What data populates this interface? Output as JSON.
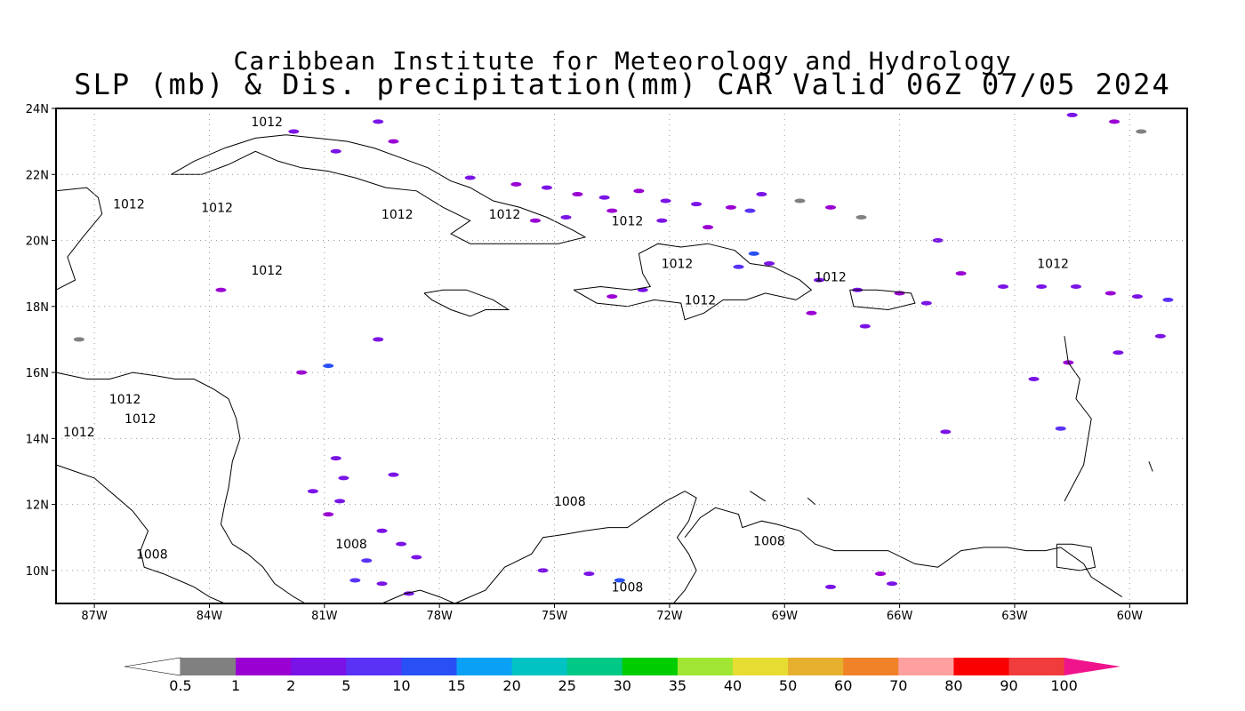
{
  "title": {
    "line1": "Caribbean Institute for Meteorology and Hydrology",
    "line2": "SLP (mb) & Dis. precipitation(mm) CAR Valid 06Z 07/05 2024"
  },
  "map": {
    "lon_range": [
      -88.0,
      -58.5
    ],
    "lat_range": [
      9.0,
      24.0
    ],
    "lon_ticks": [
      "87W",
      "84W",
      "81W",
      "78W",
      "75W",
      "72W",
      "69W",
      "66W",
      "63W",
      "60W"
    ],
    "lon_tick_values": [
      -87,
      -84,
      -81,
      -78,
      -75,
      -72,
      -69,
      -66,
      -63,
      -60
    ],
    "lat_ticks": [
      "10N",
      "12N",
      "14N",
      "16N",
      "18N",
      "20N",
      "22N",
      "24N"
    ],
    "lat_tick_values": [
      10,
      12,
      14,
      16,
      18,
      20,
      22,
      24
    ],
    "gridlines": true,
    "contour_labels": [
      {
        "text": "1012",
        "lon": -82.5,
        "lat": 23.6
      },
      {
        "text": "1012",
        "lon": -82.5,
        "lat": 19.1
      },
      {
        "text": "1012",
        "lon": -86.1,
        "lat": 21.1
      },
      {
        "text": "1012",
        "lon": -83.8,
        "lat": 21.0
      },
      {
        "text": "1012",
        "lon": -79.1,
        "lat": 20.8
      },
      {
        "text": "1012",
        "lon": -76.3,
        "lat": 20.8
      },
      {
        "text": "1012",
        "lon": -73.1,
        "lat": 20.6
      },
      {
        "text": "1012",
        "lon": -71.8,
        "lat": 19.3
      },
      {
        "text": "1012",
        "lon": -71.2,
        "lat": 18.2
      },
      {
        "text": "1012",
        "lon": -67.8,
        "lat": 18.9
      },
      {
        "text": "1012",
        "lon": -62.0,
        "lat": 19.3
      },
      {
        "text": "1012",
        "lon": -86.2,
        "lat": 15.2
      },
      {
        "text": "1012",
        "lon": -85.8,
        "lat": 14.6
      },
      {
        "text": "1012",
        "lon": -87.4,
        "lat": 14.2
      },
      {
        "text": "1008",
        "lon": -74.6,
        "lat": 12.1
      },
      {
        "text": "1008",
        "lon": -85.5,
        "lat": 10.5
      },
      {
        "text": "1008",
        "lon": -80.3,
        "lat": 10.8
      },
      {
        "text": "1008",
        "lon": -73.1,
        "lat": 9.5
      },
      {
        "text": "1008",
        "lon": -69.4,
        "lat": 10.9
      }
    ],
    "precip_patches": [
      {
        "lon": -77.2,
        "lat": 21.9,
        "v": 2
      },
      {
        "lon": -76.0,
        "lat": 21.7,
        "v": 1
      },
      {
        "lon": -75.2,
        "lat": 21.6,
        "v": 2
      },
      {
        "lon": -74.4,
        "lat": 21.4,
        "v": 1
      },
      {
        "lon": -73.7,
        "lat": 21.3,
        "v": 2
      },
      {
        "lon": -72.8,
        "lat": 21.5,
        "v": 1
      },
      {
        "lon": -72.1,
        "lat": 21.2,
        "v": 2
      },
      {
        "lon": -71.3,
        "lat": 21.1,
        "v": 2
      },
      {
        "lon": -70.4,
        "lat": 21.0,
        "v": 1
      },
      {
        "lon": -69.6,
        "lat": 21.4,
        "v": 2
      },
      {
        "lon": -68.6,
        "lat": 21.2,
        "v": 0.5
      },
      {
        "lon": -67.8,
        "lat": 21.0,
        "v": 1
      },
      {
        "lon": -67.0,
        "lat": 20.7,
        "v": 0.5
      },
      {
        "lon": -69.9,
        "lat": 20.9,
        "v": 5
      },
      {
        "lon": -71.0,
        "lat": 20.4,
        "v": 1
      },
      {
        "lon": -72.2,
        "lat": 20.6,
        "v": 2
      },
      {
        "lon": -73.5,
        "lat": 20.9,
        "v": 1
      },
      {
        "lon": -74.7,
        "lat": 20.7,
        "v": 2
      },
      {
        "lon": -75.5,
        "lat": 20.6,
        "v": 1
      },
      {
        "lon": -69.8,
        "lat": 19.6,
        "v": 10
      },
      {
        "lon": -70.2,
        "lat": 19.2,
        "v": 5
      },
      {
        "lon": -69.4,
        "lat": 19.3,
        "v": 2
      },
      {
        "lon": -68.1,
        "lat": 18.8,
        "v": 2
      },
      {
        "lon": -67.1,
        "lat": 18.5,
        "v": 2
      },
      {
        "lon": -66.0,
        "lat": 18.4,
        "v": 1
      },
      {
        "lon": -65.3,
        "lat": 18.1,
        "v": 2
      },
      {
        "lon": -64.4,
        "lat": 19.0,
        "v": 1
      },
      {
        "lon": -63.3,
        "lat": 18.6,
        "v": 2
      },
      {
        "lon": -62.3,
        "lat": 18.6,
        "v": 2
      },
      {
        "lon": -61.4,
        "lat": 18.6,
        "v": 2
      },
      {
        "lon": -60.5,
        "lat": 18.4,
        "v": 1
      },
      {
        "lon": -59.8,
        "lat": 18.3,
        "v": 2
      },
      {
        "lon": -59.0,
        "lat": 18.2,
        "v": 5
      },
      {
        "lon": -59.2,
        "lat": 17.1,
        "v": 2
      },
      {
        "lon": -60.3,
        "lat": 16.6,
        "v": 2
      },
      {
        "lon": -61.6,
        "lat": 16.3,
        "v": 1
      },
      {
        "lon": -62.5,
        "lat": 15.8,
        "v": 2
      },
      {
        "lon": -61.8,
        "lat": 14.3,
        "v": 5
      },
      {
        "lon": -64.8,
        "lat": 14.2,
        "v": 2
      },
      {
        "lon": -66.9,
        "lat": 17.4,
        "v": 2
      },
      {
        "lon": -68.3,
        "lat": 17.8,
        "v": 1
      },
      {
        "lon": -72.7,
        "lat": 18.5,
        "v": 2
      },
      {
        "lon": -73.5,
        "lat": 18.3,
        "v": 1
      },
      {
        "lon": -80.9,
        "lat": 16.2,
        "v": 10
      },
      {
        "lon": -79.6,
        "lat": 17.0,
        "v": 2
      },
      {
        "lon": -81.6,
        "lat": 16.0,
        "v": 1
      },
      {
        "lon": -80.7,
        "lat": 13.4,
        "v": 2
      },
      {
        "lon": -80.5,
        "lat": 12.8,
        "v": 2
      },
      {
        "lon": -81.3,
        "lat": 12.4,
        "v": 2
      },
      {
        "lon": -80.6,
        "lat": 12.1,
        "v": 2
      },
      {
        "lon": -80.9,
        "lat": 11.7,
        "v": 1
      },
      {
        "lon": -79.5,
        "lat": 11.2,
        "v": 2
      },
      {
        "lon": -79.0,
        "lat": 10.8,
        "v": 2
      },
      {
        "lon": -78.6,
        "lat": 10.4,
        "v": 2
      },
      {
        "lon": -79.9,
        "lat": 10.3,
        "v": 5
      },
      {
        "lon": -80.2,
        "lat": 9.7,
        "v": 5
      },
      {
        "lon": -79.5,
        "lat": 9.6,
        "v": 2
      },
      {
        "lon": -78.8,
        "lat": 9.3,
        "v": 2
      },
      {
        "lon": -79.2,
        "lat": 12.9,
        "v": 2
      },
      {
        "lon": -73.3,
        "lat": 9.7,
        "v": 10
      },
      {
        "lon": -74.1,
        "lat": 9.9,
        "v": 2
      },
      {
        "lon": -75.3,
        "lat": 10.0,
        "v": 2
      },
      {
        "lon": -67.8,
        "lat": 9.5,
        "v": 2
      },
      {
        "lon": -66.2,
        "lat": 9.6,
        "v": 2
      },
      {
        "lon": -66.5,
        "lat": 9.9,
        "v": 1
      },
      {
        "lon": -61.5,
        "lat": 23.8,
        "v": 2
      },
      {
        "lon": -60.4,
        "lat": 23.6,
        "v": 1
      },
      {
        "lon": -59.7,
        "lat": 23.3,
        "v": 0.5
      },
      {
        "lon": -81.8,
        "lat": 23.3,
        "v": 2
      },
      {
        "lon": -80.7,
        "lat": 22.7,
        "v": 2
      },
      {
        "lon": -79.6,
        "lat": 23.6,
        "v": 2
      },
      {
        "lon": -79.2,
        "lat": 23.0,
        "v": 1
      },
      {
        "lon": -65.0,
        "lat": 20.0,
        "v": 2
      },
      {
        "lon": -87.4,
        "lat": 17.0,
        "v": 0.5
      },
      {
        "lon": -83.7,
        "lat": 18.5,
        "v": 1
      }
    ],
    "coastlines": [
      [
        [
          -88.0,
          21.5
        ],
        [
          -87.2,
          21.6
        ],
        [
          -86.9,
          21.3
        ],
        [
          -86.8,
          20.8
        ],
        [
          -87.3,
          20.1
        ],
        [
          -87.7,
          19.5
        ],
        [
          -87.5,
          18.8
        ],
        [
          -88.0,
          18.5
        ]
      ],
      [
        [
          -88.0,
          16.0
        ],
        [
          -87.6,
          15.9
        ],
        [
          -87.2,
          15.8
        ],
        [
          -86.6,
          15.8
        ],
        [
          -86.0,
          16.0
        ],
        [
          -85.4,
          15.9
        ],
        [
          -84.9,
          15.8
        ],
        [
          -84.4,
          15.8
        ],
        [
          -83.9,
          15.5
        ],
        [
          -83.5,
          15.2
        ],
        [
          -83.3,
          14.6
        ],
        [
          -83.2,
          14.0
        ],
        [
          -83.4,
          13.3
        ],
        [
          -83.5,
          12.5
        ],
        [
          -83.6,
          12.0
        ],
        [
          -83.7,
          11.4
        ],
        [
          -83.4,
          10.8
        ],
        [
          -83.0,
          10.5
        ],
        [
          -82.6,
          10.1
        ],
        [
          -82.3,
          9.6
        ],
        [
          -81.8,
          9.2
        ],
        [
          -81.5,
          9.0
        ]
      ],
      [
        [
          -88.0,
          13.2
        ],
        [
          -87.5,
          13.0
        ],
        [
          -87.0,
          12.8
        ],
        [
          -86.6,
          12.4
        ],
        [
          -86.0,
          11.8
        ],
        [
          -85.6,
          11.2
        ],
        [
          -85.8,
          10.6
        ],
        [
          -85.7,
          10.1
        ],
        [
          -85.2,
          9.9
        ],
        [
          -84.8,
          9.7
        ],
        [
          -84.4,
          9.5
        ],
        [
          -84.0,
          9.2
        ],
        [
          -83.6,
          9.0
        ]
      ],
      [
        [
          -79.5,
          9.0
        ],
        [
          -78.9,
          9.3
        ],
        [
          -78.5,
          9.4
        ],
        [
          -78.0,
          9.2
        ],
        [
          -77.6,
          9.0
        ]
      ],
      [
        [
          -77.6,
          9.0
        ],
        [
          -76.8,
          9.4
        ],
        [
          -76.3,
          10.1
        ],
        [
          -75.6,
          10.5
        ],
        [
          -75.3,
          11.0
        ],
        [
          -74.7,
          11.1
        ],
        [
          -74.2,
          11.2
        ],
        [
          -73.6,
          11.3
        ],
        [
          -73.1,
          11.3
        ],
        [
          -72.6,
          11.7
        ],
        [
          -72.1,
          12.1
        ],
        [
          -71.6,
          12.4
        ],
        [
          -71.3,
          12.2
        ],
        [
          -71.5,
          11.5
        ],
        [
          -71.8,
          11.0
        ],
        [
          -71.5,
          10.5
        ],
        [
          -71.3,
          10.0
        ],
        [
          -71.6,
          9.4
        ],
        [
          -71.9,
          9.0
        ]
      ],
      [
        [
          -71.6,
          11.0
        ],
        [
          -71.2,
          11.6
        ],
        [
          -70.8,
          11.9
        ],
        [
          -70.2,
          11.7
        ],
        [
          -70.1,
          11.3
        ],
        [
          -69.6,
          11.5
        ],
        [
          -69.2,
          11.4
        ],
        [
          -68.6,
          11.2
        ],
        [
          -68.2,
          10.8
        ],
        [
          -67.7,
          10.6
        ],
        [
          -67.0,
          10.6
        ],
        [
          -66.3,
          10.6
        ],
        [
          -65.6,
          10.2
        ],
        [
          -65.0,
          10.1
        ],
        [
          -64.4,
          10.6
        ],
        [
          -63.8,
          10.7
        ],
        [
          -63.2,
          10.7
        ],
        [
          -62.7,
          10.6
        ],
        [
          -62.2,
          10.6
        ],
        [
          -61.8,
          10.7
        ],
        [
          -61.2,
          10.2
        ],
        [
          -61.0,
          9.8
        ],
        [
          -60.6,
          9.5
        ],
        [
          -60.2,
          9.2
        ]
      ],
      [
        [
          -85.0,
          22.0
        ],
        [
          -84.4,
          22.4
        ],
        [
          -83.6,
          22.8
        ],
        [
          -82.8,
          23.1
        ],
        [
          -82.0,
          23.2
        ],
        [
          -81.2,
          23.1
        ],
        [
          -80.4,
          23.0
        ],
        [
          -79.7,
          22.8
        ],
        [
          -79.0,
          22.5
        ],
        [
          -78.3,
          22.2
        ],
        [
          -77.7,
          21.8
        ],
        [
          -77.2,
          21.6
        ],
        [
          -76.6,
          21.2
        ],
        [
          -75.9,
          21.0
        ],
        [
          -75.2,
          20.7
        ],
        [
          -74.5,
          20.3
        ],
        [
          -74.2,
          20.1
        ],
        [
          -74.9,
          19.9
        ],
        [
          -75.7,
          19.9
        ],
        [
          -76.5,
          19.9
        ],
        [
          -77.2,
          19.9
        ],
        [
          -77.7,
          20.2
        ],
        [
          -77.2,
          20.6
        ],
        [
          -77.9,
          21.0
        ],
        [
          -78.6,
          21.5
        ],
        [
          -79.4,
          21.6
        ],
        [
          -80.2,
          21.9
        ],
        [
          -80.9,
          22.1
        ],
        [
          -81.6,
          22.2
        ],
        [
          -82.2,
          22.4
        ],
        [
          -82.8,
          22.7
        ],
        [
          -83.5,
          22.3
        ],
        [
          -84.2,
          22.0
        ],
        [
          -85.0,
          22.0
        ]
      ],
      [
        [
          -78.4,
          18.4
        ],
        [
          -77.9,
          18.5
        ],
        [
          -77.3,
          18.5
        ],
        [
          -76.6,
          18.2
        ],
        [
          -76.2,
          17.9
        ],
        [
          -76.8,
          17.9
        ],
        [
          -77.2,
          17.7
        ],
        [
          -77.7,
          17.9
        ],
        [
          -78.2,
          18.2
        ],
        [
          -78.4,
          18.4
        ]
      ],
      [
        [
          -74.5,
          18.5
        ],
        [
          -73.8,
          18.6
        ],
        [
          -73.0,
          18.5
        ],
        [
          -72.5,
          18.6
        ],
        [
          -72.7,
          19.0
        ],
        [
          -72.8,
          19.6
        ],
        [
          -72.3,
          19.9
        ],
        [
          -71.7,
          19.8
        ],
        [
          -71.0,
          19.9
        ],
        [
          -70.3,
          19.7
        ],
        [
          -69.9,
          19.3
        ],
        [
          -69.3,
          19.2
        ],
        [
          -68.6,
          18.8
        ],
        [
          -68.3,
          18.5
        ],
        [
          -68.7,
          18.2
        ],
        [
          -69.5,
          18.4
        ],
        [
          -70.0,
          18.2
        ],
        [
          -70.6,
          18.2
        ],
        [
          -71.1,
          17.8
        ],
        [
          -71.6,
          17.6
        ],
        [
          -71.7,
          18.1
        ],
        [
          -72.4,
          18.2
        ],
        [
          -73.1,
          18.0
        ],
        [
          -73.9,
          18.1
        ],
        [
          -74.5,
          18.5
        ]
      ],
      [
        [
          -67.3,
          18.5
        ],
        [
          -66.6,
          18.5
        ],
        [
          -65.7,
          18.4
        ],
        [
          -65.6,
          18.1
        ],
        [
          -66.3,
          17.9
        ],
        [
          -67.2,
          18.0
        ],
        [
          -67.3,
          18.5
        ]
      ],
      [
        [
          -61.7,
          17.1
        ],
        [
          -61.6,
          16.3
        ],
        [
          -61.3,
          15.8
        ],
        [
          -61.4,
          15.2
        ],
        [
          -61.0,
          14.6
        ],
        [
          -61.1,
          13.9
        ],
        [
          -61.2,
          13.2
        ],
        [
          -61.7,
          12.1
        ]
      ],
      [
        [
          -61.9,
          10.8
        ],
        [
          -61.5,
          10.8
        ],
        [
          -61.0,
          10.7
        ],
        [
          -60.9,
          10.1
        ],
        [
          -61.3,
          10.0
        ],
        [
          -61.9,
          10.1
        ],
        [
          -61.9,
          10.8
        ]
      ],
      [
        [
          -69.9,
          12.4
        ],
        [
          -69.5,
          12.1
        ]
      ],
      [
        [
          -68.4,
          12.2
        ],
        [
          -68.2,
          12.0
        ]
      ],
      [
        [
          -59.5,
          13.3
        ],
        [
          -59.4,
          13.0
        ]
      ]
    ]
  },
  "colorbar": {
    "colors": [
      "#808080",
      "#9a00d2",
      "#7a14e6",
      "#5a32f5",
      "#2850f5",
      "#0aa0f5",
      "#00c3c3",
      "#00c886",
      "#00cd00",
      "#a0e632",
      "#e6dc32",
      "#e6af2d",
      "#f08228",
      "#ffa0a0",
      "#fa0000",
      "#f03c3c",
      "#f0148c"
    ],
    "labels": [
      "0.5",
      "1",
      "2",
      "5",
      "10",
      "15",
      "20",
      "25",
      "30",
      "35",
      "40",
      "50",
      "60",
      "70",
      "80",
      "90",
      "100"
    ]
  }
}
